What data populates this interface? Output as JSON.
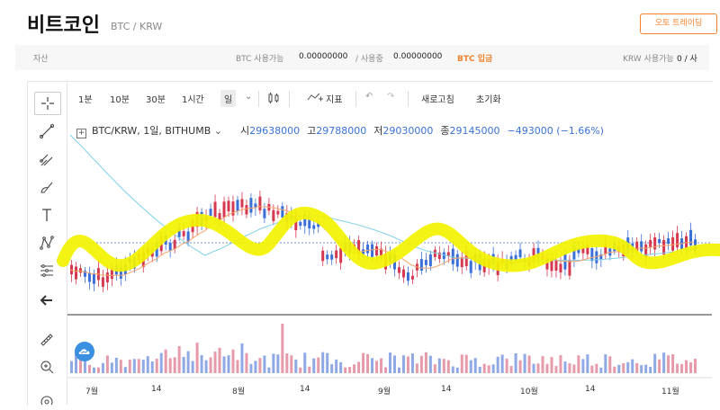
{
  "header": {
    "coin_name": "비트코인",
    "pair": "BTC / KRW",
    "trade_button": "오토 트레이딩"
  },
  "asset_bar": {
    "asset_label": "자산",
    "btc_available_label": "BTC 사용가능",
    "btc_available_value": "0.00000000",
    "btc_in_use_label": "/ 사용중",
    "btc_in_use_value": "0.00000000",
    "btc_deposit": "BTC 입금",
    "krw_available_label": "KRW 사용가능",
    "krw_available_value": "0 / 사"
  },
  "toolbar": {
    "intervals": [
      "1분",
      "10분",
      "30분",
      "1시간",
      "일"
    ],
    "selected_interval": "일",
    "indicator_label": "지표",
    "save_label": "새로고침",
    "reset_label": "초기화"
  },
  "legend": {
    "symbol": "BTC/KRW, 1일, BITHUMB",
    "open_label": "시",
    "open": "29638000",
    "high_label": "고",
    "high": "29788000",
    "low_label": "저",
    "low": "29030000",
    "close_label": "종",
    "close": "29145000",
    "change": "−493000 (−1.66%)"
  },
  "x_axis_labels": [
    "7월",
    "14",
    "8월",
    "14",
    "9월",
    "14",
    "10월",
    "14",
    "11월"
  ],
  "colors": {
    "up": "#d6384f",
    "down": "#3a6fd8",
    "ma_short": "#f7a46b",
    "ma_long": "#7fd0e8",
    "highlight": "#f2f200",
    "accent": "#f5822d"
  },
  "icons": [
    "crosshair-icon",
    "trendline-icon",
    "fib-icon",
    "brush-icon",
    "text-icon",
    "pattern-icon",
    "measure-icon",
    "back-arrow-icon",
    "ruler-icon",
    "zoom-in-icon",
    "magnet-icon"
  ]
}
